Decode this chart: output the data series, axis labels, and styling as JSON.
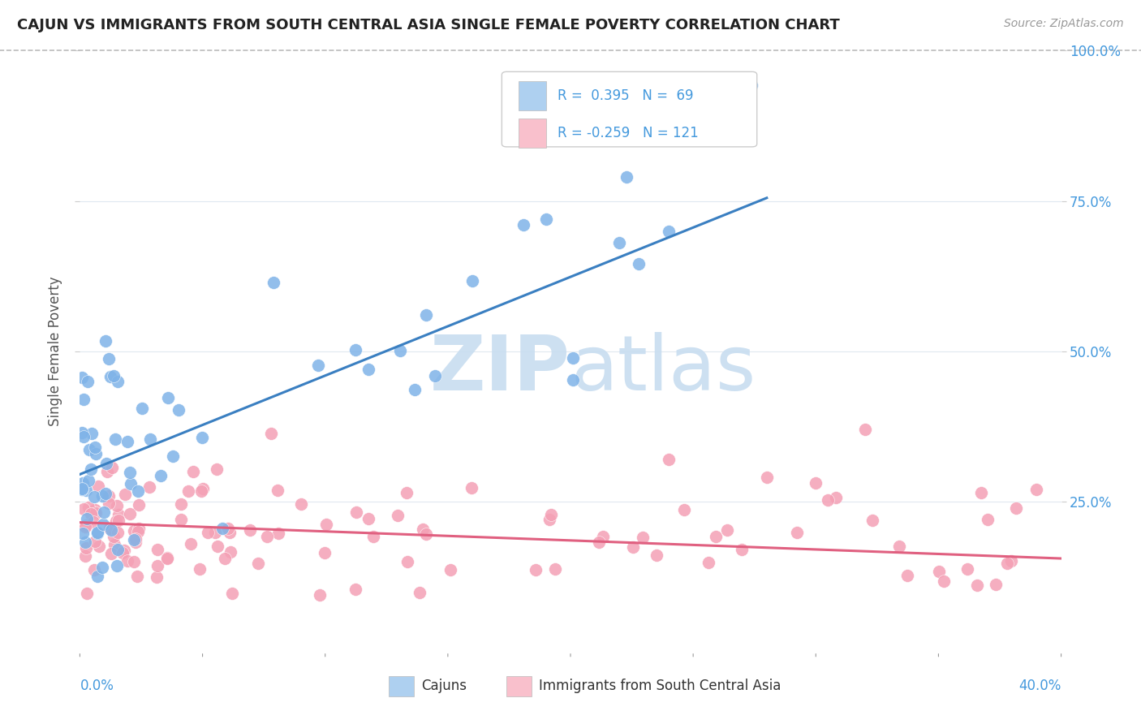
{
  "title": "CAJUN VS IMMIGRANTS FROM SOUTH CENTRAL ASIA SINGLE FEMALE POVERTY CORRELATION CHART",
  "source": "Source: ZipAtlas.com",
  "ylabel": "Single Female Poverty",
  "xlim": [
    0.0,
    0.4
  ],
  "ylim": [
    0.0,
    1.0
  ],
  "cajun_R": 0.395,
  "cajun_N": 69,
  "immigrant_R": -0.259,
  "immigrant_N": 121,
  "cajun_color": "#7fb3e8",
  "immigrant_color": "#f4a0b5",
  "cajun_legend_color": "#aed0f0",
  "immigrant_legend_color": "#f9c0cc",
  "trend_cajun_color": "#3a7fc1",
  "trend_immigrant_color": "#e06080",
  "watermark_color": "#c8ddf0",
  "background_color": "#ffffff",
  "tick_color": "#4499dd",
  "grid_color": "#e0e8f0",
  "cajun_trend_x0": 0.0,
  "cajun_trend_y0": 0.295,
  "cajun_trend_x1": 0.28,
  "cajun_trend_y1": 0.755,
  "immigrant_trend_x0": 0.0,
  "immigrant_trend_y0": 0.215,
  "immigrant_trend_x1": 0.4,
  "immigrant_trend_y1": 0.155
}
